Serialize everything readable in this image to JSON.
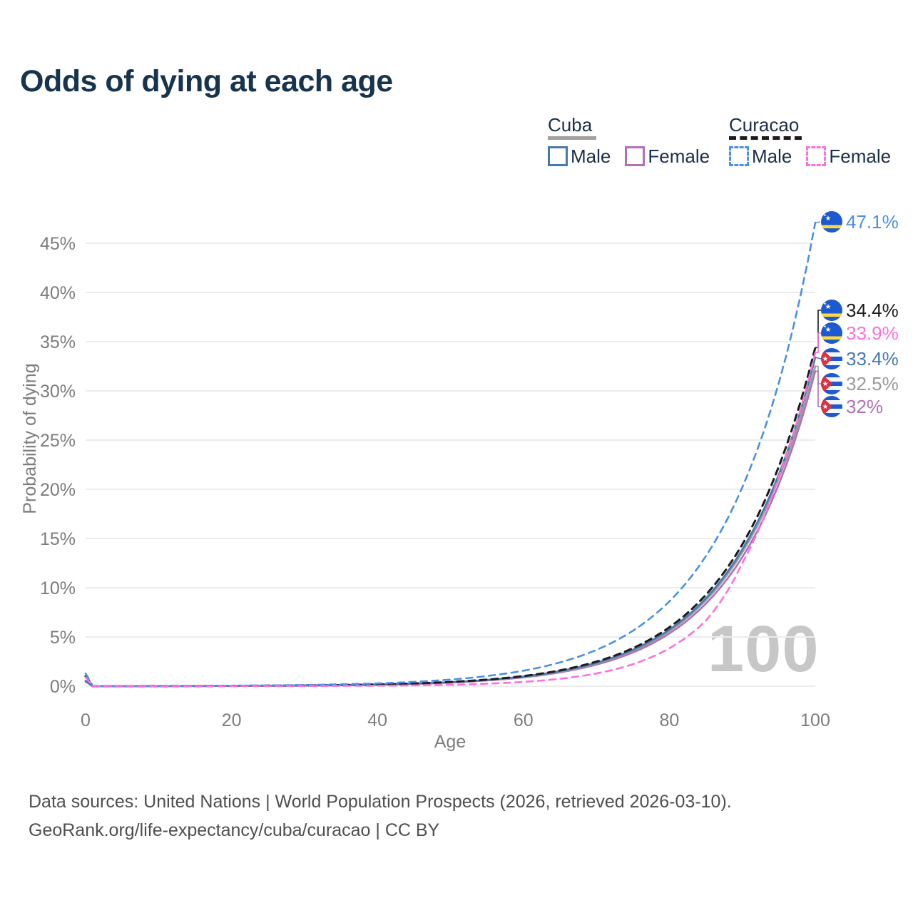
{
  "title": "Odds of dying at each age",
  "legend": {
    "groups": [
      {
        "name": "Cuba",
        "line_style": "solid",
        "items": [
          {
            "label": "Male",
            "color": "#4678b2"
          },
          {
            "label": "Female",
            "color": "#b06fb8"
          }
        ]
      },
      {
        "name": "Curacao",
        "line_style": "dashed",
        "items": [
          {
            "label": "Male",
            "color": "#4a90e8"
          },
          {
            "label": "Female",
            "color": "#ff6fdc"
          }
        ]
      }
    ]
  },
  "y_axis": {
    "label": "Probability of dying",
    "ticks": [
      {
        "value": 0,
        "label": "0%"
      },
      {
        "value": 5,
        "label": "5%"
      },
      {
        "value": 10,
        "label": "10%"
      },
      {
        "value": 15,
        "label": "15%"
      },
      {
        "value": 20,
        "label": "20%"
      },
      {
        "value": 25,
        "label": "25%"
      },
      {
        "value": 30,
        "label": "30%"
      },
      {
        "value": 35,
        "label": "35%"
      },
      {
        "value": 40,
        "label": "40%"
      },
      {
        "value": 45,
        "label": "45%"
      }
    ]
  },
  "x_axis": {
    "label": "Age",
    "ticks": [
      {
        "value": 0,
        "label": "0"
      },
      {
        "value": 20,
        "label": "20"
      },
      {
        "value": 40,
        "label": "40"
      },
      {
        "value": 60,
        "label": "60"
      },
      {
        "value": 80,
        "label": "80"
      },
      {
        "value": 100,
        "label": "100"
      }
    ]
  },
  "watermark": {
    "text": "100"
  },
  "end_labels": [
    {
      "series": "curacao-male",
      "flag": "curacao",
      "value": "47.1%",
      "color": "#4a90e8"
    },
    {
      "series": "curacao-total",
      "flag": "curacao",
      "value": "34.4%",
      "color": "#1c1c1c"
    },
    {
      "series": "curacao-female",
      "flag": "curacao",
      "value": "33.9%",
      "color": "#ff6fdc"
    },
    {
      "series": "cuba-male",
      "flag": "cuba",
      "value": "33.4%",
      "color": "#4678b2"
    },
    {
      "series": "cuba-total",
      "flag": "cuba",
      "value": "32.5%",
      "color": "#9b9b9b"
    },
    {
      "series": "cuba-female",
      "flag": "cuba",
      "value": "32%",
      "color": "#b06fb8"
    }
  ],
  "footer": {
    "line1": "Data sources: United Nations | World Population Prospects (2026, retrieved 2026-03-10).",
    "line2": "GeoRank.org/life-expectancy/cuba/curacao | CC BY"
  },
  "colors": {
    "title_text": "#17344f",
    "legend_text": "#1c2e4a",
    "axis_text": "#7d7d7d",
    "gridline": "#ececec",
    "footer_text": "#4f4f4f",
    "watermark": "#c7c7c7",
    "cuba_male": "#4678b2",
    "cuba_female": "#b06fb8",
    "cuba_total": "#9b9b9b",
    "curacao_male": "#4a90e8",
    "curacao_female": "#ff6fdc",
    "curacao_total": "#1c1c1c",
    "flag_blue": "#1d59cf",
    "flag_yellow": "#ffd83d",
    "flag_red": "#d8333f"
  },
  "chart_data": {
    "type": "line",
    "title": "Odds of dying at each age",
    "xlabel": "Age",
    "ylabel": "Probability of dying",
    "x_range": [
      0,
      100
    ],
    "y_range_percent": [
      0,
      47.5
    ],
    "grid": "horizontal-only",
    "age_shown": 100,
    "series": [
      {
        "id": "cuba-female",
        "name": "Cuba Female",
        "style": "solid",
        "color": "#b06fb8",
        "end_value_pct": 32.0,
        "points": [
          [
            0,
            0.45
          ],
          [
            1,
            0.003
          ],
          [
            5,
            0.004
          ],
          [
            10,
            0.009
          ],
          [
            15,
            0.014
          ],
          [
            20,
            0.022
          ],
          [
            25,
            0.035
          ],
          [
            30,
            0.055
          ],
          [
            35,
            0.087
          ],
          [
            40,
            0.137
          ],
          [
            45,
            0.224
          ],
          [
            50,
            0.36
          ],
          [
            55,
            0.58
          ],
          [
            60,
            0.89
          ],
          [
            65,
            1.4
          ],
          [
            70,
            2.19
          ],
          [
            75,
            3.42
          ],
          [
            80,
            5.35
          ],
          [
            85,
            8.37
          ],
          [
            90,
            13.1
          ],
          [
            95,
            20.5
          ],
          [
            100,
            32.0
          ]
        ]
      },
      {
        "id": "cuba-total",
        "name": "Cuba",
        "style": "solid",
        "color": "#9b9b9b",
        "end_value_pct": 32.5,
        "points": [
          [
            0,
            0.5
          ],
          [
            1,
            0.0035
          ],
          [
            5,
            0.005
          ],
          [
            10,
            0.01
          ],
          [
            15,
            0.016
          ],
          [
            20,
            0.024
          ],
          [
            25,
            0.038
          ],
          [
            30,
            0.059
          ],
          [
            35,
            0.093
          ],
          [
            40,
            0.145
          ],
          [
            45,
            0.238
          ],
          [
            50,
            0.39
          ],
          [
            55,
            0.61
          ],
          [
            60,
            0.95
          ],
          [
            65,
            1.48
          ],
          [
            70,
            2.31
          ],
          [
            75,
            3.59
          ],
          [
            80,
            5.59
          ],
          [
            85,
            8.71
          ],
          [
            90,
            13.6
          ],
          [
            95,
            21.1
          ],
          [
            100,
            32.5
          ]
        ]
      },
      {
        "id": "cuba-male",
        "name": "Cuba Male",
        "style": "solid",
        "color": "#4678b2",
        "end_value_pct": 33.4,
        "points": [
          [
            0,
            0.55
          ],
          [
            1,
            0.004
          ],
          [
            5,
            0.006
          ],
          [
            10,
            0.012
          ],
          [
            15,
            0.019
          ],
          [
            20,
            0.029
          ],
          [
            25,
            0.045
          ],
          [
            30,
            0.07
          ],
          [
            35,
            0.109
          ],
          [
            40,
            0.169
          ],
          [
            45,
            0.263
          ],
          [
            50,
            0.409
          ],
          [
            55,
            0.635
          ],
          [
            60,
            0.987
          ],
          [
            65,
            1.53
          ],
          [
            70,
            2.38
          ],
          [
            75,
            3.7
          ],
          [
            80,
            5.74
          ],
          [
            85,
            8.92
          ],
          [
            90,
            13.9
          ],
          [
            95,
            21.5
          ],
          [
            100,
            33.4
          ]
        ]
      },
      {
        "id": "curacao-total",
        "name": "Curacao",
        "style": "dashed",
        "color": "#1c1c1c",
        "end_value_pct": 34.4,
        "points": [
          [
            0,
            1.0
          ],
          [
            1,
            0.007
          ],
          [
            5,
            0.009
          ],
          [
            10,
            0.013
          ],
          [
            15,
            0.02
          ],
          [
            20,
            0.031
          ],
          [
            25,
            0.048
          ],
          [
            30,
            0.075
          ],
          [
            35,
            0.115
          ],
          [
            40,
            0.179
          ],
          [
            45,
            0.277
          ],
          [
            50,
            0.43
          ],
          [
            55,
            0.667
          ],
          [
            60,
            1.03
          ],
          [
            65,
            1.6
          ],
          [
            70,
            2.49
          ],
          [
            75,
            3.86
          ],
          [
            80,
            5.98
          ],
          [
            85,
            9.27
          ],
          [
            90,
            14.4
          ],
          [
            95,
            22.3
          ],
          [
            100,
            34.4
          ]
        ]
      },
      {
        "id": "curacao-male",
        "name": "Curacao Male",
        "style": "dashed",
        "color": "#4a90e8",
        "end_value_pct": 47.1,
        "points": [
          [
            0,
            1.3
          ],
          [
            1,
            0.01
          ],
          [
            5,
            0.015
          ],
          [
            10,
            0.022
          ],
          [
            15,
            0.034
          ],
          [
            20,
            0.052
          ],
          [
            25,
            0.08
          ],
          [
            30,
            0.123
          ],
          [
            35,
            0.188
          ],
          [
            40,
            0.287
          ],
          [
            45,
            0.439
          ],
          [
            50,
            0.672
          ],
          [
            55,
            1.03
          ],
          [
            60,
            1.57
          ],
          [
            65,
            2.41
          ],
          [
            70,
            3.68
          ],
          [
            75,
            5.63
          ],
          [
            80,
            8.61
          ],
          [
            85,
            13.2
          ],
          [
            90,
            20.2
          ],
          [
            95,
            30.8
          ],
          [
            100,
            47.1
          ]
        ]
      },
      {
        "id": "curacao-female",
        "name": "Curacao Female",
        "style": "dashed",
        "color": "#ff6fdc",
        "end_value_pct": 33.9,
        "points": [
          [
            0,
            0.9
          ],
          [
            1,
            0.005
          ],
          [
            5,
            0.006
          ],
          [
            10,
            0.007
          ],
          [
            15,
            0.009
          ],
          [
            20,
            0.012
          ],
          [
            25,
            0.016
          ],
          [
            30,
            0.021
          ],
          [
            35,
            0.032
          ],
          [
            40,
            0.049
          ],
          [
            45,
            0.085
          ],
          [
            50,
            0.146
          ],
          [
            55,
            0.252
          ],
          [
            60,
            0.434
          ],
          [
            65,
            0.75
          ],
          [
            70,
            1.29
          ],
          [
            75,
            2.23
          ],
          [
            80,
            3.85
          ],
          [
            85,
            6.65
          ],
          [
            90,
            12.5
          ],
          [
            95,
            21.3
          ],
          [
            100,
            33.9
          ]
        ]
      }
    ]
  }
}
